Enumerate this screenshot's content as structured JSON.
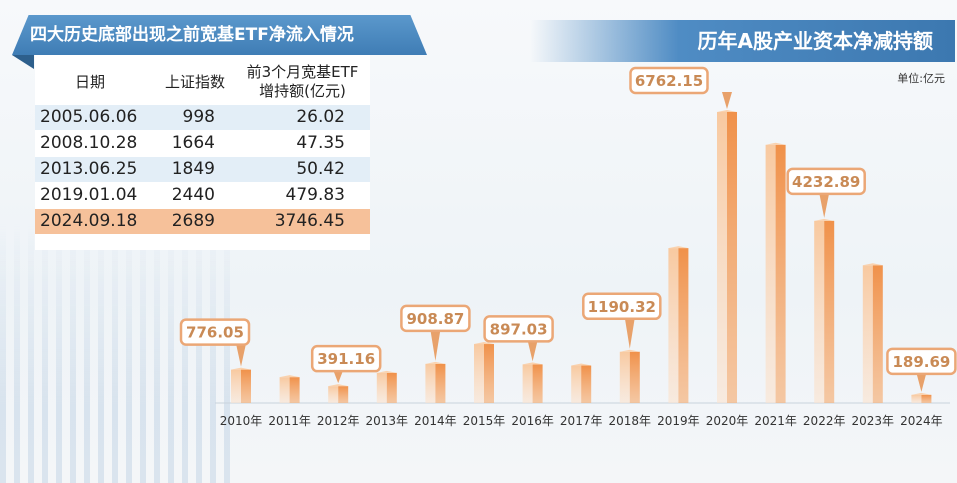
{
  "table": {
    "title": "四大历史底部出现之前宽基ETF净流入情况",
    "headers": [
      "日期",
      "上证指数",
      "前3个月宽基ETF\n增持额(亿元)"
    ],
    "header_line1": "前3个月宽基ETF",
    "header_line2": "增持额(亿元)",
    "rows": [
      [
        "2005.06.06",
        "998",
        "26.02"
      ],
      [
        "2008.10.28",
        "1664",
        "47.35"
      ],
      [
        "2013.06.25",
        "1849",
        "50.42"
      ],
      [
        "2019.01.04",
        "2440",
        "479.83"
      ],
      [
        "2024.09.18",
        "2689",
        "3746.45"
      ]
    ],
    "row_colors": [
      "#e3eef7",
      "#ffffff",
      "#e3eef7",
      "#ffffff",
      "#f6c19a"
    ]
  },
  "chart_data": {
    "type": "bar",
    "title": "历年A股产业资本净减持额",
    "unit": "单位:亿元",
    "categories": [
      "2010年",
      "2011年",
      "2012年",
      "2013年",
      "2014年",
      "2015年",
      "2016年",
      "2017年",
      "2018年",
      "2019年",
      "2020年",
      "2021年",
      "2022年",
      "2023年",
      "2024年"
    ],
    "values": [
      776.05,
      600,
      391.16,
      700,
      908.87,
      1370,
      897.03,
      870,
      1190.32,
      3600,
      6762.15,
      6000,
      4232.89,
      3200,
      189.69
    ],
    "data_labels": [
      "776.05",
      null,
      "391.16",
      null,
      "908.87",
      null,
      "897.03",
      null,
      "1190.32",
      null,
      "6762.15",
      null,
      "4232.89",
      null,
      "189.69"
    ],
    "ylim": [
      0,
      7000
    ],
    "grid": false,
    "bar_color": "#f0914a",
    "label_color": "#c98a55"
  }
}
